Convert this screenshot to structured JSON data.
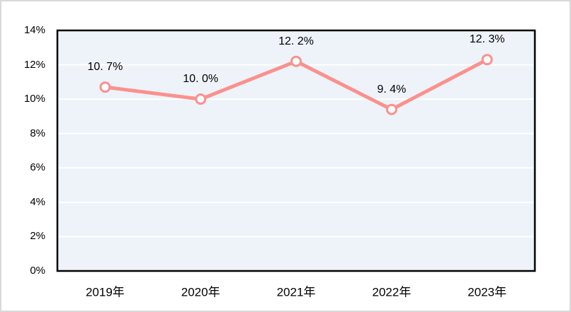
{
  "chart_data": {
    "type": "line",
    "title": "",
    "xlabel": "",
    "ylabel": "",
    "categories": [
      "2019年",
      "2020年",
      "2021年",
      "2022年",
      "2023年"
    ],
    "values": [
      10.7,
      10.0,
      12.2,
      9.4,
      12.3
    ],
    "point_labels": [
      "10. 7%",
      "10. 0%",
      "12. 2%",
      "9. 4%",
      "12. 3%"
    ],
    "yticks": [
      "0%",
      "2%",
      "4%",
      "6%",
      "8%",
      "10%",
      "12%",
      "14%"
    ],
    "ytick_values": [
      0,
      2,
      4,
      6,
      8,
      10,
      12,
      14
    ],
    "ylim": [
      0,
      14
    ],
    "grid": "horizontal",
    "legend": "none",
    "colors": {
      "line": "#fa918e",
      "marker_fill": "#ffffff",
      "marker_stroke": "#fa918e",
      "plot_background": "#edf3f8",
      "gridline": "#ffffff",
      "plot_border": "#000000",
      "frame_border": "#d9d9d9",
      "text": "#000000",
      "page_background": "#ffffff"
    }
  }
}
